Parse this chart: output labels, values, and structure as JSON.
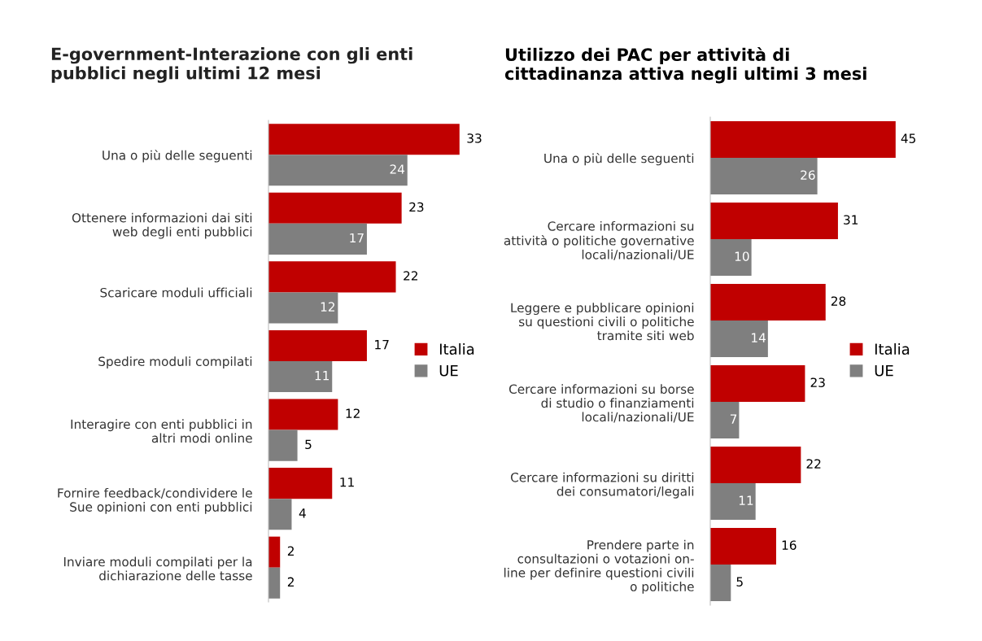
{
  "chart_data": [
    {
      "type": "bar",
      "orientation": "horizontal",
      "title": "E-government-Interazione con gli enti\npubblici negli ultimi 12 mesi",
      "categories": [
        "Una o più delle seguenti",
        "Ottenere informazioni dai siti\nweb degli enti pubblici",
        "Scaricare moduli ufficiali",
        "Spedire moduli compilati",
        "Interagire con enti pubblici in\naltri modi online",
        "Fornire feedback/condividere le\nSue opinioni con enti pubblici",
        "Inviare moduli compilati per la\ndichiarazione delle tasse"
      ],
      "series": [
        {
          "name": "Italia",
          "color": "#c00000",
          "values": [
            33,
            23,
            22,
            17,
            12,
            11,
            2
          ]
        },
        {
          "name": "UE",
          "color": "#7f7f7f",
          "values": [
            24,
            17,
            12,
            11,
            5,
            4,
            2
          ]
        }
      ],
      "data_labels": true,
      "legend": "right",
      "grid": false,
      "tick_labels": "y"
    },
    {
      "type": "bar",
      "orientation": "horizontal",
      "title": "Utilizzo dei PAC per attività di\ncittadinanza attiva negli ultimi 3 mesi",
      "categories": [
        "Una o più delle seguenti",
        "Cercare informazioni su\nattività o politiche governative\nlocali/nazionali/UE",
        "Leggere e pubblicare opinioni\nsu questioni civili o politiche\ntramite siti web",
        "Cercare informazioni su borse\ndi studio o finanziamenti\nlocali/nazionali/UE",
        "Cercare informazioni su diritti\ndei consumatori/legali",
        "Prendere parte in\nconsultazioni o votazioni on-\nline per definire questioni civili\no politiche"
      ],
      "series": [
        {
          "name": "Italia",
          "color": "#c00000",
          "values": [
            45,
            31,
            28,
            23,
            22,
            16
          ]
        },
        {
          "name": "UE",
          "color": "#7f7f7f",
          "values": [
            26,
            10,
            14,
            7,
            11,
            5
          ]
        }
      ],
      "data_labels": true,
      "legend": "right",
      "grid": false,
      "tick_labels": "y"
    }
  ]
}
